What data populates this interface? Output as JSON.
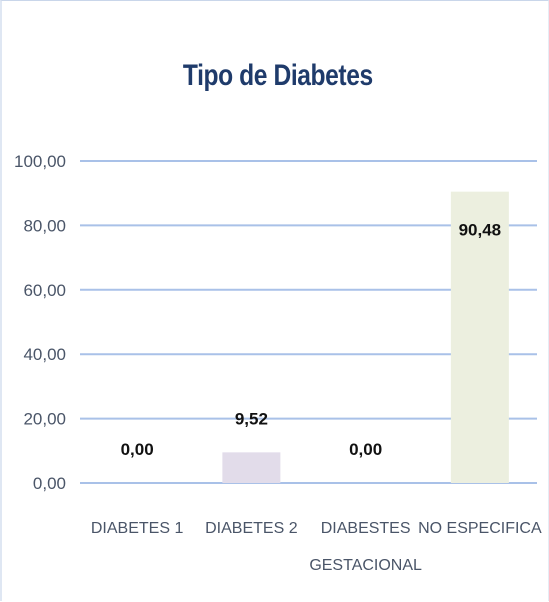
{
  "chart_data": {
    "type": "bar",
    "title": "Tipo de Diabetes",
    "categories": [
      [
        "DIABETES 1"
      ],
      [
        "DIABETES 2"
      ],
      [
        "DIABESTES",
        "GESTACIONAL"
      ],
      [
        "NO ESPECIFICA"
      ]
    ],
    "values": [
      0.0,
      9.52,
      0.0,
      90.48
    ],
    "data_labels": [
      "0,00",
      "9,52",
      "0,00",
      "90,48"
    ],
    "yticks": [
      0,
      20,
      40,
      60,
      80,
      100
    ],
    "ytick_labels": [
      "0,00",
      "20,00",
      "40,00",
      "60,00",
      "80,00",
      "100,00"
    ],
    "ylim": [
      0,
      100
    ],
    "grid": true,
    "legend": "none",
    "bar_colors": [
      "#d9d2e3",
      "#e2dcea",
      "#d9d2e3",
      "#ecefdf"
    ],
    "gridline_color": "#a9c1e8",
    "title_color": "#1f3b6b"
  }
}
